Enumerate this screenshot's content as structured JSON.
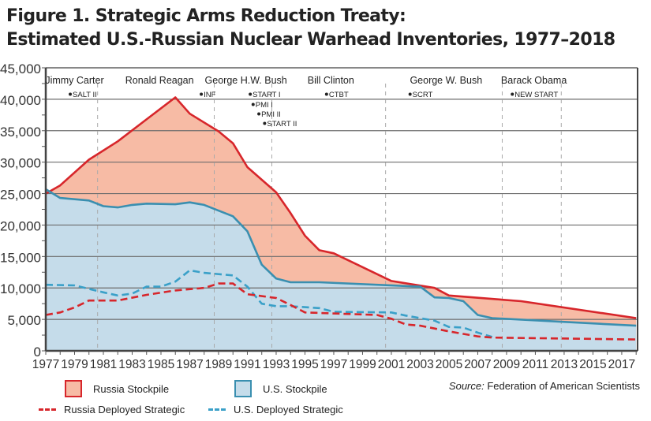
{
  "header": {
    "title_line1": "Figure 1. Strategic Arms Reduction Treaty:",
    "title_line2": "Estimated U.S.-Russian Nuclear Warhead Inventories, 1977–2018"
  },
  "colors": {
    "russia_line": "#d7262b",
    "russia_fill": "#f7bba5",
    "us_line": "#3a8fb0",
    "us_fill": "#c5dcea",
    "us_deployed": "#3aa0c8",
    "gridline": "#6d6d6d",
    "divider": "#a9a9a9"
  },
  "legend": {
    "russia_stockpile": "Russia Stockpile",
    "us_stockpile": "U.S. Stockpile",
    "russia_deployed": "Russia Deployed Strategic",
    "us_deployed": "U.S. Deployed Strategic"
  },
  "source": {
    "prefix": "Source:",
    "text": " Federation of American Scientists"
  },
  "chart_data": {
    "type": "area",
    "title": "Estimated U.S.-Russian Nuclear Warhead Inventories, 1977–2018",
    "xlabel": "",
    "ylabel": "",
    "xlim": [
      1977,
      2018
    ],
    "ylim": [
      0,
      45000
    ],
    "grid": true,
    "y_ticks": [
      0,
      5000,
      10000,
      15000,
      20000,
      25000,
      30000,
      35000,
      40000,
      45000
    ],
    "y_tick_labels": [
      "0",
      "5,000",
      "10,000",
      "15,000",
      "20,000",
      "25,000",
      "30,000",
      "35,000",
      "40,000",
      "45,000"
    ],
    "x_ticks": [
      1977,
      1979,
      1981,
      1983,
      1985,
      1987,
      1989,
      1991,
      1993,
      1995,
      1997,
      1999,
      2001,
      2003,
      2005,
      2007,
      2009,
      2011,
      2013,
      2015,
      2017
    ],
    "x_tick_labels": [
      "1977",
      "1979",
      "1981",
      "1983",
      "1985",
      "1987",
      "1989",
      "1991",
      "1993",
      "1995",
      "1997",
      "1999",
      "2001",
      "2003",
      "2005",
      "2007",
      "2009",
      "2011",
      "2013",
      "2015",
      "2017"
    ],
    "legend_position": "bottom",
    "series": [
      {
        "name": "Russia Stockpile",
        "style": "area",
        "x": [
          1977,
          1978,
          1980,
          1982,
          1984,
          1986,
          1987,
          1989,
          1990,
          1991,
          1993,
          1994,
          1995,
          1996,
          1997,
          2001,
          2004,
          2005,
          2010,
          2018
        ],
        "values": [
          25000,
          26300,
          30400,
          33300,
          36800,
          40300,
          37700,
          34900,
          33000,
          29200,
          25200,
          21900,
          18300,
          16000,
          15500,
          11100,
          10000,
          8800,
          7900,
          5200
        ]
      },
      {
        "name": "U.S. Stockpile",
        "style": "area",
        "x": [
          1977,
          1978,
          1980,
          1981,
          1982,
          1983,
          1984,
          1986,
          1987,
          1988,
          1990,
          1991,
          1992,
          1993,
          1994,
          1996,
          2003,
          2004,
          2005,
          2006,
          2007,
          2008,
          2018
        ],
        "values": [
          25700,
          24300,
          23900,
          23000,
          22800,
          23200,
          23400,
          23300,
          23600,
          23200,
          21400,
          19000,
          13700,
          11500,
          10900,
          10900,
          10200,
          8500,
          8400,
          7900,
          5700,
          5200,
          4000
        ]
      },
      {
        "name": "Russia Deployed Strategic",
        "style": "dashed-line",
        "x": [
          1977,
          1978,
          1979,
          1980,
          1982,
          1984,
          1986,
          1988,
          1989,
          1990,
          1991,
          1993,
          1994,
          1995,
          2000,
          2001,
          2002,
          2003,
          2005,
          2007,
          2008,
          2018
        ],
        "values": [
          5700,
          6100,
          6900,
          8000,
          8000,
          8900,
          9600,
          10000,
          10700,
          10700,
          9000,
          8400,
          7300,
          6100,
          5700,
          5100,
          4200,
          4000,
          3100,
          2300,
          2100,
          1800
        ]
      },
      {
        "name": "U.S. Deployed Strategic",
        "style": "dashed-line",
        "x": [
          1977,
          1979,
          1981,
          1982,
          1983,
          1984,
          1985,
          1986,
          1987,
          1988,
          1990,
          1991,
          1992,
          1993,
          1994,
          1996,
          1997,
          2001,
          2002,
          2004,
          2005,
          2006,
          2007,
          2008
        ],
        "values": [
          10500,
          10400,
          9300,
          8800,
          9100,
          10200,
          10200,
          11000,
          12800,
          12400,
          12000,
          10200,
          7500,
          7100,
          7100,
          6800,
          6200,
          6100,
          5600,
          4800,
          3800,
          3700,
          2900,
          2200
        ]
      }
    ],
    "administrations": [
      {
        "label": "Jimmy Carter",
        "center": 1979.0
      },
      {
        "label": "Ronald Reagan",
        "center": 1984.9
      },
      {
        "label": "George H.W. Bush",
        "center": 1990.9
      },
      {
        "label": "Bill Clinton",
        "center": 1996.8
      },
      {
        "label": "George W. Bush",
        "center": 2004.8
      },
      {
        "label": "Barack Obama",
        "center": 2010.9
      }
    ],
    "term_dividers": [
      1980.6,
      1988.7,
      1992.7,
      2000.6,
      2008.7,
      2012.8
    ],
    "treaties": [
      {
        "label": "SALT II",
        "year": 1978.7,
        "row": 0
      },
      {
        "label": "INF",
        "year": 1987.8,
        "row": 0
      },
      {
        "label": "START I",
        "year": 1991.2,
        "row": 0
      },
      {
        "label": "PMI I",
        "year": 1991.4,
        "row": 1
      },
      {
        "label": "PMI II",
        "year": 1991.8,
        "row": 2
      },
      {
        "label": "START II",
        "year": 1992.2,
        "row": 3
      },
      {
        "label": "CTBT",
        "year": 1996.5,
        "row": 0
      },
      {
        "label": "SCRT",
        "year": 2002.3,
        "row": 0
      },
      {
        "label": "NEW START",
        "year": 2009.4,
        "row": 0
      }
    ]
  }
}
